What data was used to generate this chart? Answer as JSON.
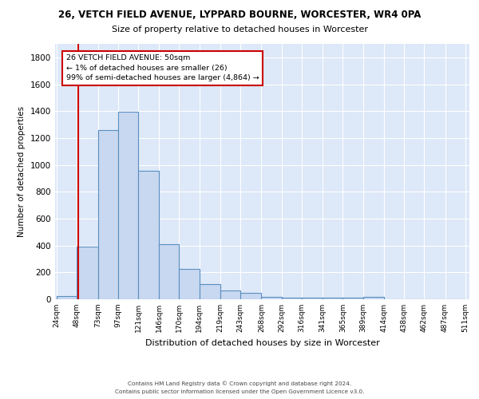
{
  "title1": "26, VETCH FIELD AVENUE, LYPPARD BOURNE, WORCESTER, WR4 0PA",
  "title2": "Size of property relative to detached houses in Worcester",
  "xlabel": "Distribution of detached houses by size in Worcester",
  "ylabel": "Number of detached properties",
  "bins": [
    "24sqm",
    "48sqm",
    "73sqm",
    "97sqm",
    "121sqm",
    "146sqm",
    "170sqm",
    "194sqm",
    "219sqm",
    "243sqm",
    "268sqm",
    "292sqm",
    "316sqm",
    "341sqm",
    "365sqm",
    "389sqm",
    "414sqm",
    "438sqm",
    "462sqm",
    "487sqm",
    "511sqm"
  ],
  "bin_edges": [
    24,
    48,
    73,
    97,
    121,
    146,
    170,
    194,
    219,
    243,
    268,
    292,
    316,
    341,
    365,
    389,
    414,
    438,
    462,
    487,
    511
  ],
  "values": [
    25,
    390,
    1260,
    1395,
    955,
    410,
    228,
    115,
    65,
    50,
    20,
    10,
    10,
    10,
    10,
    20,
    0,
    0,
    0,
    0
  ],
  "bar_color": "#c8d8f0",
  "bar_edge_color": "#5a8fc0",
  "bar_linewidth": 0.8,
  "red_line_x": 50,
  "red_line_color": "#cc0000",
  "annotation_line1": "26 VETCH FIELD AVENUE: 50sqm",
  "annotation_line2": "← 1% of detached houses are smaller (26)",
  "annotation_line3": "99% of semi-detached houses are larger (4,864) →",
  "annotation_box_color": "white",
  "annotation_box_edgecolor": "#cc0000",
  "ylim": [
    0,
    1900
  ],
  "yticks": [
    0,
    200,
    400,
    600,
    800,
    1000,
    1200,
    1400,
    1600,
    1800
  ],
  "grid_color": "#cccccc",
  "bg_color": "#dde8f8",
  "footer1": "Contains HM Land Registry data © Crown copyright and database right 2024.",
  "footer2": "Contains public sector information licensed under the Open Government Licence v3.0."
}
